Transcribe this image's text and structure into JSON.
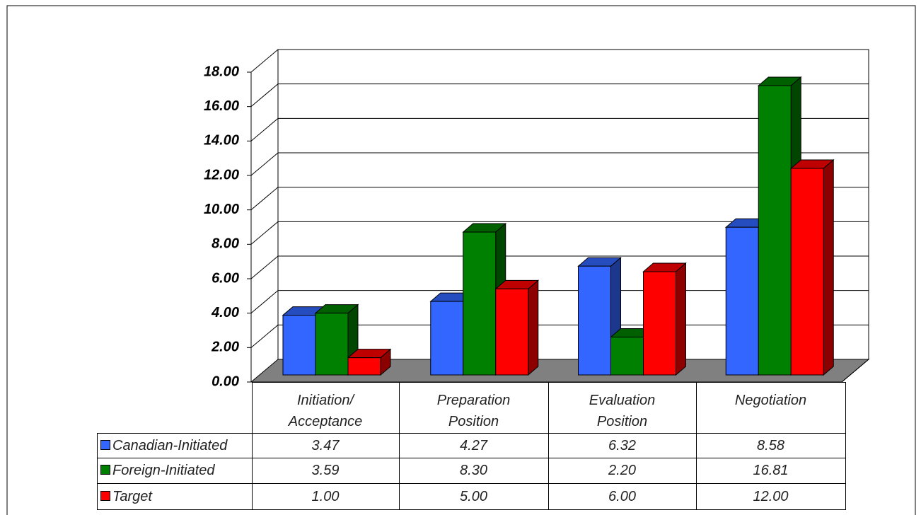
{
  "chart_data": {
    "type": "bar3d",
    "categories": [
      "Initiation/ Acceptance",
      "Preparation Position",
      "Evaluation Position",
      "Negotiation"
    ],
    "series": [
      {
        "name": "Canadian-Initiated",
        "color": "#3366ff",
        "values": [
          3.47,
          4.27,
          6.32,
          8.58
        ],
        "value_labels": [
          "3.47",
          "4.27",
          "6.32",
          "8.58"
        ]
      },
      {
        "name": "Foreign-Initiated",
        "color": "#008000",
        "values": [
          3.59,
          8.3,
          2.2,
          16.81
        ],
        "value_labels": [
          "3.59",
          "8.30",
          "2.20",
          "16.81"
        ]
      },
      {
        "name": "Target",
        "color": "#ff0000",
        "values": [
          1,
          5,
          6,
          12
        ],
        "value_labels": [
          "1.00",
          "5.00",
          "6.00",
          "12.00"
        ]
      }
    ],
    "ylim": [
      0,
      18
    ],
    "yticks": [
      {
        "value": 0,
        "label": "0.00"
      },
      {
        "value": 2,
        "label": "2.00"
      },
      {
        "value": 4,
        "label": "4.00"
      },
      {
        "value": 6,
        "label": "6.00"
      },
      {
        "value": 8,
        "label": "8.00"
      },
      {
        "value": 10,
        "label": "10.00"
      },
      {
        "value": 12,
        "label": "12.00"
      },
      {
        "value": 14,
        "label": "14.00"
      },
      {
        "value": 16,
        "label": "16.00"
      },
      {
        "value": 18,
        "label": "18.00"
      }
    ],
    "grid": true,
    "data_table": true
  }
}
